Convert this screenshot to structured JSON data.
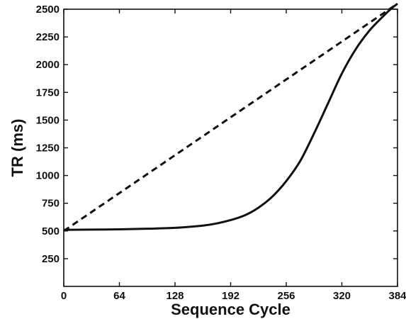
{
  "chart_data": {
    "type": "line",
    "title": "",
    "xlabel": "Sequence Cycle",
    "ylabel": "TR  (ms)",
    "xlim": [
      0,
      384
    ],
    "ylim": [
      0,
      2500
    ],
    "grid": false,
    "xticks": [
      0,
      64,
      128,
      192,
      256,
      320,
      384
    ],
    "yticks": [
      250,
      500,
      750,
      1000,
      1250,
      1500,
      1750,
      2000,
      2250,
      2500
    ],
    "series": [
      {
        "style": "solid",
        "color": "#111111",
        "x": [
          0,
          32,
          64,
          96,
          128,
          160,
          176,
          192,
          208,
          224,
          240,
          256,
          272,
          288,
          304,
          320,
          336,
          352,
          368,
          376,
          384
        ],
        "y": [
          510,
          512,
          515,
          520,
          528,
          548,
          568,
          598,
          640,
          710,
          810,
          950,
          1130,
          1380,
          1650,
          1920,
          2140,
          2310,
          2440,
          2500,
          2550
        ]
      },
      {
        "style": "dashed",
        "color": "#111111",
        "x": [
          0,
          384
        ],
        "y": [
          500,
          2550
        ]
      }
    ]
  }
}
